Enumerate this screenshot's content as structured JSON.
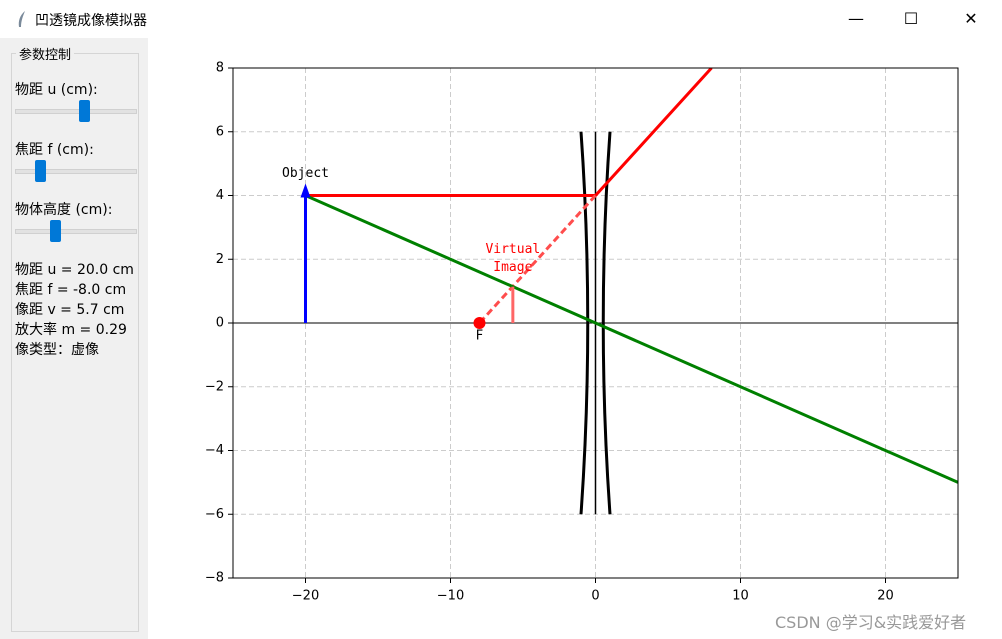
{
  "window": {
    "title": "凹透镜成像模拟器"
  },
  "panel": {
    "group_title": "参数控制",
    "slider_labels": [
      "物距 u (cm):",
      "焦距 f (cm):",
      "物体高度 (cm):"
    ],
    "info": [
      "物距 u = 20.0 cm",
      "焦距 f = -8.0 cm",
      "像距 v = 5.7 cm",
      "放大率 m = 0.29",
      "像类型：虚像"
    ]
  },
  "watermark": "CSDN @学习&实践爱好者",
  "chart_data": {
    "type": "line",
    "xlim": [
      -25,
      25
    ],
    "ylim": [
      -8,
      8
    ],
    "xticks": [
      {
        "value": -20,
        "label": "−20"
      },
      {
        "value": -10,
        "label": "−10"
      },
      0,
      10,
      20
    ],
    "yticks": [
      {
        "value": -8,
        "label": "−8"
      },
      {
        "value": -6,
        "label": "−6"
      },
      {
        "value": -4,
        "label": "−4"
      },
      {
        "value": -2,
        "label": "−2"
      },
      0,
      2,
      4,
      6,
      8
    ],
    "grid": true,
    "series": [
      {
        "color": "#0000ff",
        "x": [
          -20,
          -20
        ],
        "values": [
          0,
          4
        ]
      },
      {
        "color": "#ff0000",
        "x": [
          -20,
          0,
          8
        ],
        "values": [
          4,
          4,
          8
        ]
      },
      {
        "color": "#ff4d4d",
        "dashed": true,
        "x": [
          0,
          -8
        ],
        "values": [
          4,
          0
        ]
      },
      {
        "color": "#008000",
        "x": [
          -20,
          25
        ],
        "values": [
          4,
          -5
        ]
      },
      {
        "color": "#ff6666",
        "x": [
          -5.7,
          -5.7
        ],
        "values": [
          0,
          1.14
        ]
      }
    ],
    "lens": {
      "x": 0,
      "ylim": [
        -6,
        6
      ]
    },
    "focal_point": {
      "x": -8,
      "y": 0,
      "label": "F"
    },
    "object_label": "Object",
    "image_label": [
      "Virtual",
      "Image"
    ]
  }
}
